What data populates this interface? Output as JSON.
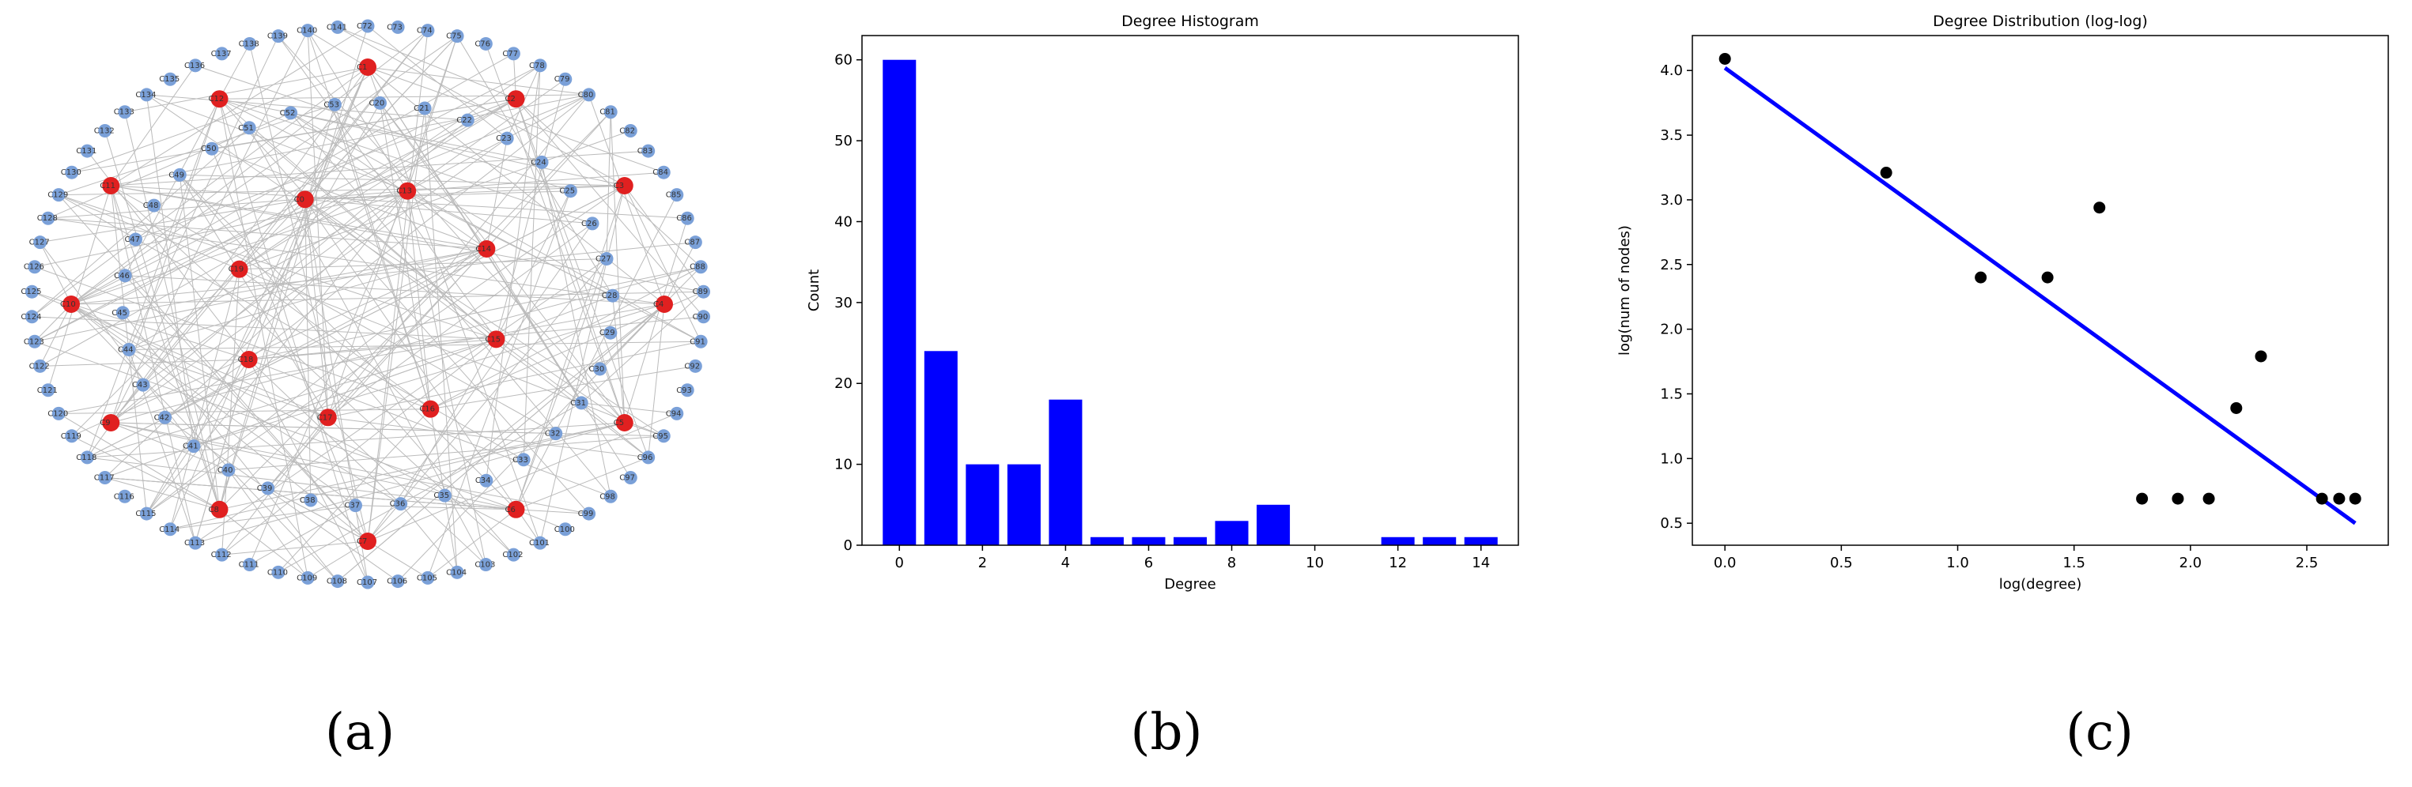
{
  "captions": {
    "a": "(a)",
    "b": "(b)",
    "c": "(c)"
  },
  "colors": {
    "bar": "#0000ff",
    "fit_line": "#0000ff",
    "point": "#000000",
    "node_peripheral": "#7aa0d8",
    "node_hub": "#e02020",
    "edge": "#bbbbbb"
  },
  "network": {
    "outer_ring_labels": [
      "C72",
      "C73",
      "C74",
      "C75",
      "C76",
      "C77",
      "C78",
      "C79",
      "C80",
      "C81",
      "C82",
      "C83",
      "C84",
      "C85",
      "C86",
      "C87",
      "C88",
      "C89",
      "C90",
      "C91",
      "C92",
      "C93",
      "C94",
      "C95",
      "C96",
      "C97",
      "C98",
      "C99",
      "C100",
      "C101",
      "C102",
      "C103",
      "C104",
      "C105",
      "C106",
      "C107",
      "C108",
      "C109",
      "C110",
      "C111",
      "C112",
      "C113",
      "C114",
      "C115",
      "C116",
      "C117",
      "C118",
      "C119",
      "C120",
      "C121",
      "C122",
      "C123",
      "C124",
      "C125",
      "C126",
      "C127",
      "C128",
      "C129",
      "C130",
      "C131",
      "C132",
      "C133",
      "C134",
      "C135",
      "C136",
      "C137",
      "C138",
      "C139",
      "C140",
      "C141"
    ],
    "inner_ring_labels": [
      "C20",
      "C21",
      "C22",
      "C23",
      "C24",
      "C25",
      "C26",
      "C27",
      "C28",
      "C29",
      "C30",
      "C31",
      "C32",
      "C33",
      "C34",
      "C35",
      "C36",
      "C37",
      "C38",
      "C39",
      "C40",
      "C41",
      "C42",
      "C43",
      "C44",
      "C45",
      "C46",
      "C47",
      "C48",
      "C49",
      "C50",
      "C51",
      "C52",
      "C53"
    ],
    "hub_labels": [
      "C1",
      "C2",
      "C3",
      "C4",
      "C5",
      "C6",
      "C7",
      "C8",
      "C9",
      "C10",
      "C11",
      "C12",
      "C13",
      "C14",
      "C15",
      "C16",
      "C17",
      "C18",
      "C19",
      "C0"
    ]
  },
  "chart_data": [
    {
      "type": "bar",
      "title": "Degree Histogram",
      "xlabel": "Degree",
      "ylabel": "Count",
      "x": [
        0,
        1,
        2,
        3,
        4,
        5,
        6,
        7,
        8,
        9,
        12,
        13,
        14
      ],
      "values": [
        60,
        24,
        10,
        10,
        18,
        1,
        1,
        1,
        3,
        5,
        1,
        1,
        1
      ],
      "xlim": [
        -0.9,
        14.9
      ],
      "ylim": [
        0,
        63
      ],
      "xticks": [
        0,
        2,
        4,
        6,
        8,
        10,
        12,
        14
      ],
      "yticks": [
        0,
        10,
        20,
        30,
        40,
        50,
        60
      ]
    },
    {
      "type": "scatter",
      "title": "Degree Distribution (log-log)",
      "xlabel": "log(degree)",
      "ylabel": "log(num of nodes)",
      "x": [
        0.0,
        0.693,
        1.099,
        1.386,
        1.609,
        1.792,
        1.946,
        2.079,
        2.197,
        2.303,
        2.565,
        2.639,
        2.708
      ],
      "y": [
        4.09,
        3.21,
        2.4,
        2.4,
        2.94,
        0.69,
        0.69,
        0.69,
        1.39,
        1.79,
        0.69,
        0.69,
        0.69
      ],
      "fit_line": {
        "x": [
          0.0,
          2.708
        ],
        "y": [
          4.02,
          0.5
        ]
      },
      "xlim": [
        -0.14,
        2.85
      ],
      "ylim": [
        0.33,
        4.27
      ],
      "xticks": [
        0.0,
        0.5,
        1.0,
        1.5,
        2.0,
        2.5
      ],
      "xticklabels": [
        "0.0",
        "0.5",
        "1.0",
        "1.5",
        "2.0",
        "2.5"
      ],
      "yticks": [
        0.5,
        1.0,
        1.5,
        2.0,
        2.5,
        3.0,
        3.5,
        4.0
      ],
      "yticklabels": [
        "0.5",
        "1.0",
        "1.5",
        "2.0",
        "2.5",
        "3.0",
        "3.5",
        "4.0"
      ]
    }
  ]
}
